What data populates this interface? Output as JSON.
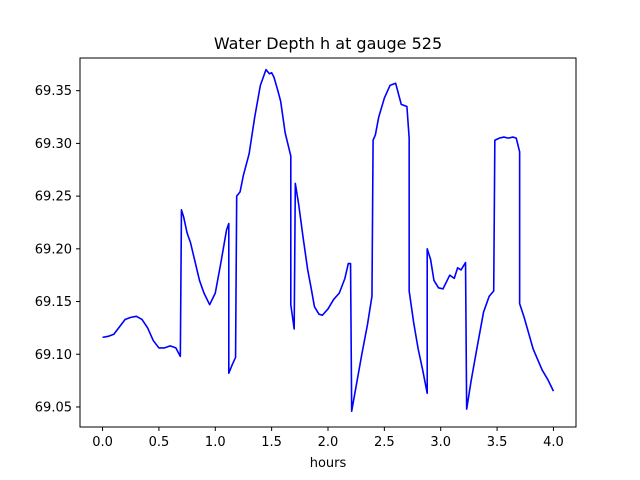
{
  "chart_data": {
    "type": "line",
    "title": "Water Depth h at gauge 525",
    "xlabel": "hours",
    "ylabel": "",
    "xlim": [
      -0.2,
      4.2
    ],
    "ylim": [
      69.031,
      69.381
    ],
    "xticks": [
      0.0,
      0.5,
      1.0,
      1.5,
      2.0,
      2.5,
      3.0,
      3.5,
      4.0
    ],
    "xtick_labels": [
      "0.0",
      "0.5",
      "1.0",
      "1.5",
      "2.0",
      "2.5",
      "3.0",
      "3.5",
      "4.0"
    ],
    "yticks": [
      69.05,
      69.1,
      69.15,
      69.2,
      69.25,
      69.3,
      69.35
    ],
    "ytick_labels": [
      "69.05",
      "69.10",
      "69.15",
      "69.20",
      "69.25",
      "69.30",
      "69.35"
    ],
    "grid": false,
    "series": [
      {
        "color": "#0000ff",
        "x": [
          0.0,
          0.05,
          0.1,
          0.15,
          0.2,
          0.25,
          0.3,
          0.35,
          0.4,
          0.45,
          0.5,
          0.55,
          0.6,
          0.65,
          0.69,
          0.7,
          0.72,
          0.75,
          0.78,
          0.82,
          0.86,
          0.9,
          0.95,
          1.0,
          1.05,
          1.1,
          1.12,
          1.12,
          1.15,
          1.18,
          1.19,
          1.22,
          1.25,
          1.3,
          1.35,
          1.4,
          1.45,
          1.48,
          1.5,
          1.52,
          1.55,
          1.58,
          1.62,
          1.67,
          1.67,
          1.7,
          1.71,
          1.74,
          1.78,
          1.82,
          1.85,
          1.88,
          1.92,
          1.95,
          2.0,
          2.05,
          2.1,
          2.15,
          2.18,
          2.2,
          2.21,
          2.25,
          2.3,
          2.35,
          2.39,
          2.4,
          2.42,
          2.45,
          2.5,
          2.55,
          2.6,
          2.65,
          2.7,
          2.72,
          2.72,
          2.76,
          2.8,
          2.84,
          2.88,
          2.88,
          2.91,
          2.94,
          2.98,
          3.02,
          3.08,
          3.12,
          3.15,
          3.18,
          3.22,
          3.23,
          3.27,
          3.32,
          3.38,
          3.43,
          3.47,
          3.48,
          3.52,
          3.56,
          3.6,
          3.64,
          3.67,
          3.7,
          3.7,
          3.74,
          3.78,
          3.82,
          3.86,
          3.9,
          3.95,
          4.0
        ],
        "values": [
          69.116,
          69.117,
          69.119,
          69.126,
          69.133,
          69.135,
          69.136,
          69.133,
          69.125,
          69.113,
          69.106,
          69.106,
          69.108,
          69.106,
          69.098,
          69.237,
          69.23,
          69.215,
          69.206,
          69.188,
          69.17,
          69.158,
          69.147,
          69.158,
          69.187,
          69.218,
          69.224,
          69.082,
          69.09,
          69.097,
          69.25,
          69.254,
          69.27,
          69.29,
          69.325,
          69.355,
          69.37,
          69.366,
          69.367,
          69.363,
          69.352,
          69.34,
          69.31,
          69.288,
          69.147,
          69.124,
          69.262,
          69.242,
          69.21,
          69.18,
          69.163,
          69.145,
          69.138,
          69.137,
          69.143,
          69.152,
          69.158,
          69.172,
          69.186,
          69.186,
          69.046,
          69.07,
          69.1,
          69.128,
          69.155,
          69.303,
          69.308,
          69.325,
          69.343,
          69.355,
          69.357,
          69.337,
          69.335,
          69.305,
          69.16,
          69.13,
          69.105,
          69.085,
          69.063,
          69.2,
          69.19,
          69.17,
          69.163,
          69.162,
          69.175,
          69.172,
          69.182,
          69.18,
          69.187,
          69.048,
          69.075,
          69.105,
          69.14,
          69.155,
          69.16,
          69.303,
          69.305,
          69.306,
          69.305,
          69.306,
          69.305,
          69.292,
          69.148,
          69.135,
          69.12,
          69.105,
          69.095,
          69.085,
          69.076,
          69.065
        ]
      }
    ]
  }
}
